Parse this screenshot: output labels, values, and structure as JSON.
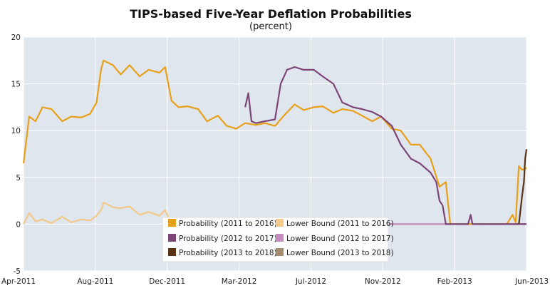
{
  "chart_data": {
    "type": "line",
    "title": "TIPS-based Five-Year Deflation Probabilities",
    "subtitle": "(percent)",
    "ylim": [
      -5,
      20
    ],
    "yticks": [
      -5,
      0,
      5,
      10,
      15,
      20
    ],
    "xticks": [
      "Apr-2011",
      "Aug-2011",
      "Dec-2011",
      "Mar-2012",
      "Jul-2012",
      "Nov-2012",
      "Feb-2013",
      "Jun-2013"
    ],
    "grid": true,
    "legend_position": "bottom-center",
    "series": [
      {
        "name": "Probability (2011 to 2016)",
        "color": "#e8a01a",
        "x": [
          "2011-04-01",
          "2011-04-10",
          "2011-04-20",
          "2011-05-01",
          "2011-05-15",
          "2011-06-01",
          "2011-06-15",
          "2011-07-01",
          "2011-07-15",
          "2011-07-25",
          "2011-08-01",
          "2011-08-05",
          "2011-08-20",
          "2011-09-01",
          "2011-09-15",
          "2011-10-01",
          "2011-10-15",
          "2011-11-01",
          "2011-11-10",
          "2011-11-20",
          "2011-12-01",
          "2011-12-15",
          "2012-01-01",
          "2012-01-15",
          "2012-02-01",
          "2012-02-15",
          "2012-03-01",
          "2012-03-15",
          "2012-04-01",
          "2012-04-15",
          "2012-05-01",
          "2012-05-15",
          "2012-06-01",
          "2012-06-15",
          "2012-07-01",
          "2012-07-15",
          "2012-08-01",
          "2012-08-15",
          "2012-09-01",
          "2012-09-15",
          "2012-10-01",
          "2012-10-15",
          "2012-11-01",
          "2012-11-15",
          "2012-12-01",
          "2012-12-15",
          "2013-01-01",
          "2013-01-15",
          "2013-01-25",
          "2013-02-01",
          "2013-02-15",
          "2013-03-01",
          "2013-03-15",
          "2013-04-01",
          "2013-04-15",
          "2013-05-01",
          "2013-05-10",
          "2013-05-15",
          "2013-05-20",
          "2013-05-25",
          "2013-06-01"
        ],
        "values": [
          6.5,
          11.5,
          11.0,
          12.5,
          12.3,
          11.0,
          11.5,
          11.4,
          11.8,
          13.0,
          16.5,
          17.5,
          17.0,
          16.0,
          17.0,
          15.8,
          16.5,
          16.2,
          16.8,
          13.2,
          12.5,
          12.6,
          12.3,
          11.0,
          11.6,
          10.5,
          10.2,
          10.8,
          10.6,
          10.8,
          10.5,
          11.6,
          12.8,
          12.2,
          12.5,
          12.6,
          11.9,
          12.3,
          12.1,
          11.6,
          11.0,
          11.5,
          10.2,
          10.0,
          8.5,
          8.5,
          7.0,
          4.0,
          4.5,
          0.0,
          0.0,
          0.0,
          0.0,
          0.0,
          0.0,
          0.0,
          1.0,
          0.2,
          6.2,
          5.8,
          6.0
        ]
      },
      {
        "name": "Lower Bound (2011 to 2016)",
        "color": "#f3c98a",
        "x": [
          "2011-04-01",
          "2011-04-10",
          "2011-04-20",
          "2011-05-01",
          "2011-05-15",
          "2011-06-01",
          "2011-06-15",
          "2011-07-01",
          "2011-07-15",
          "2011-07-25",
          "2011-08-01",
          "2011-08-05",
          "2011-08-20",
          "2011-09-01",
          "2011-09-15",
          "2011-10-01",
          "2011-10-15",
          "2011-11-01",
          "2011-11-10",
          "2011-11-20",
          "2011-12-01",
          "2012-03-01",
          "2012-06-01",
          "2012-09-01",
          "2012-11-20",
          "2013-01-01",
          "2013-03-01",
          "2013-05-10",
          "2013-06-01"
        ],
        "values": [
          0.0,
          1.2,
          0.3,
          0.5,
          0.1,
          0.8,
          0.2,
          0.5,
          0.4,
          0.9,
          1.5,
          2.3,
          1.8,
          1.7,
          1.9,
          1.0,
          1.3,
          0.9,
          1.5,
          0.0,
          0.0,
          0.0,
          0.0,
          0.0,
          0.0,
          0.0,
          0.0,
          0.0,
          0.0
        ]
      },
      {
        "name": "Probability (2012 to 2017)",
        "color": "#7d4577",
        "x": [
          "2012-03-15",
          "2012-03-20",
          "2012-03-25",
          "2012-04-01",
          "2012-04-15",
          "2012-05-01",
          "2012-05-10",
          "2012-05-20",
          "2012-06-01",
          "2012-06-15",
          "2012-07-01",
          "2012-07-15",
          "2012-08-01",
          "2012-08-15",
          "2012-09-01",
          "2012-09-15",
          "2012-10-01",
          "2012-10-15",
          "2012-11-01",
          "2012-11-15",
          "2012-12-01",
          "2012-12-15",
          "2013-01-01",
          "2013-01-10",
          "2013-01-15",
          "2013-01-20",
          "2013-01-25",
          "2013-02-01",
          "2013-03-01",
          "2013-03-05",
          "2013-03-08",
          "2013-04-01",
          "2013-05-01",
          "2013-05-25",
          "2013-06-01"
        ],
        "values": [
          12.5,
          14.0,
          11.0,
          10.8,
          11.0,
          11.2,
          15.0,
          16.5,
          16.8,
          16.5,
          16.5,
          15.8,
          15.0,
          13.0,
          12.5,
          12.3,
          12.0,
          11.5,
          10.5,
          8.5,
          7.0,
          6.5,
          5.5,
          4.5,
          2.5,
          2.0,
          0.0,
          0.0,
          0.0,
          1.0,
          0.0,
          0.0,
          0.0,
          0.0,
          0.0
        ]
      },
      {
        "name": "Lower Bound (2012 to 2017)",
        "color": "#c58cbf",
        "x": [
          "2012-09-01",
          "2012-11-01",
          "2013-01-01",
          "2013-03-01",
          "2013-05-01",
          "2013-06-01"
        ],
        "values": [
          0.0,
          0.0,
          0.0,
          0.0,
          0.0,
          0.0
        ]
      },
      {
        "name": "Probability (2013 to 2018)",
        "color": "#5a3214",
        "x": [
          "2013-05-20",
          "2013-05-25",
          "2013-05-28",
          "2013-05-30",
          "2013-06-01"
        ],
        "values": [
          0.0,
          3.0,
          4.5,
          7.0,
          8.0
        ]
      },
      {
        "name": "Lower Bound (2013 to 2018)",
        "color": "#a58a6e",
        "x": [
          "2013-04-01",
          "2013-05-01",
          "2013-06-01"
        ],
        "values": [
          0.0,
          0.0,
          0.0
        ]
      }
    ]
  }
}
